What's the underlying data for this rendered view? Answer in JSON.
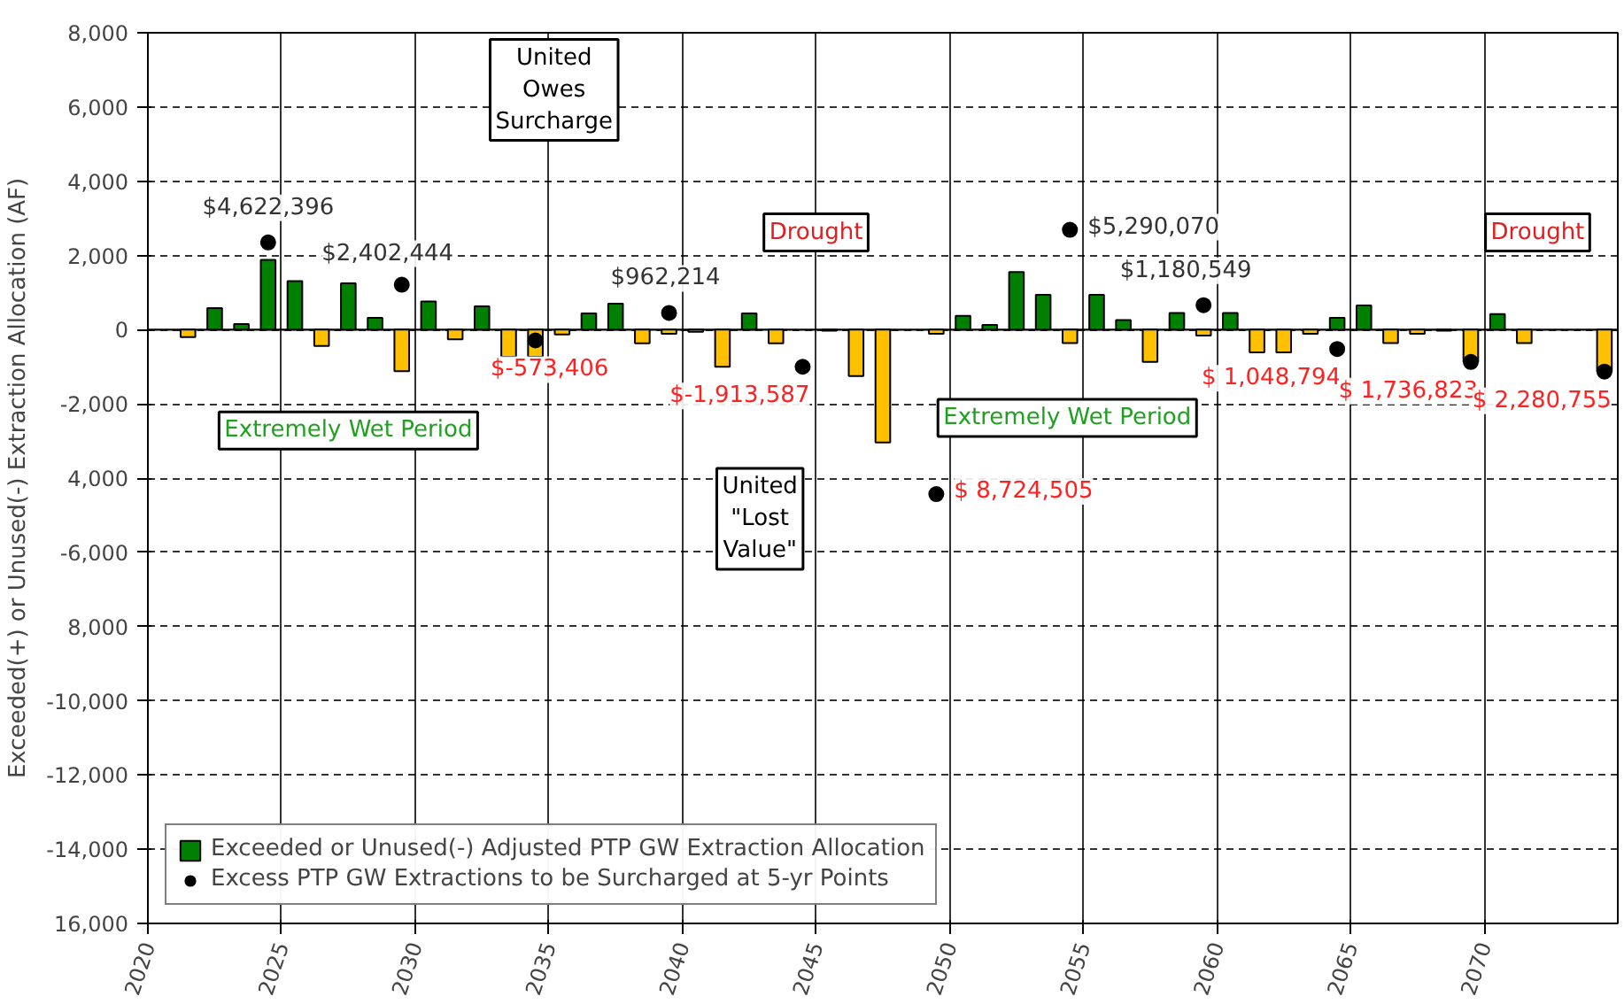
{
  "chart_data": {
    "type": "bar",
    "ylabel": "Exceeded(+) or Unused(-) Extraction Allocation (AF)",
    "x": [
      2021.5,
      2022.5,
      2023.5,
      2024.5,
      2025.5,
      2026.5,
      2027.5,
      2028.5,
      2029.5,
      2030.5,
      2031.5,
      2032.5,
      2033.5,
      2034.5,
      2035.5,
      2036.5,
      2037.5,
      2038.5,
      2039.5,
      2040.5,
      2041.5,
      2042.5,
      2043.5,
      2044.5,
      2045.5,
      2046.5,
      2047.5,
      2048.5,
      2049.5,
      2050.5,
      2051.5,
      2052.5,
      2053.5,
      2054.5,
      2055.5,
      2056.5,
      2057.5,
      2058.5,
      2059.5,
      2060.5,
      2061.5,
      2062.5,
      2063.5,
      2064.5,
      2065.5,
      2066.5,
      2067.5,
      2068.5,
      2069.5,
      2070.5,
      2071.5,
      2072.5,
      2073.5,
      2074.5
    ],
    "series": [
      {
        "name": "Exceeded or Unused(-) Adjusted PTP GW Extraction Allocation",
        "color": "#008000",
        "values": [
          -200,
          580,
          150,
          1880,
          1310,
          -440,
          1250,
          320,
          -1120,
          760,
          -260,
          630,
          -730,
          -730,
          -130,
          440,
          700,
          -370,
          -110,
          -60,
          -1000,
          440,
          -370,
          null,
          -30,
          -1250,
          -3040,
          null,
          -110,
          370,
          130,
          1550,
          940,
          -360,
          940,
          260,
          -870,
          450,
          -160,
          450,
          -610,
          -610,
          -110,
          320,
          650,
          -360,
          -110,
          -30,
          -870,
          420,
          -360,
          null,
          null,
          -1130
        ],
        "colors": [
          "#ffc000",
          "#008000",
          "#008000",
          "#008000",
          "#008000",
          "#ffc000",
          "#008000",
          "#008000",
          "#ffc000",
          "#008000",
          "#ffc000",
          "#008000",
          "#ffc000",
          "#ffc000",
          "#ffc000",
          "#008000",
          "#008000",
          "#ffc000",
          "#ffc000",
          "#ffc000",
          "#ffc000",
          "#008000",
          "#ffc000",
          "#ffc000",
          "#ffc000",
          "#ffc000",
          "#ffc000",
          "#ffc000",
          "#ffc000",
          "#008000",
          "#008000",
          "#008000",
          "#008000",
          "#ffc000",
          "#008000",
          "#008000",
          "#ffc000",
          "#008000",
          "#ffc000",
          "#008000",
          "#ffc000",
          "#ffc000",
          "#ffc000",
          "#008000",
          "#008000",
          "#ffc000",
          "#ffc000",
          "#ffc000",
          "#ffc000",
          "#008000",
          "#ffc000",
          "#ffc000",
          "#ffc000",
          "#ffc000"
        ]
      },
      {
        "name": "Excess PTP GW Extractions to be Surcharged at 5-yr Points",
        "type": "scatter",
        "color": "#000000",
        "marker": "circle",
        "x": [
          2024.5,
          2029.5,
          2034.5,
          2039.5,
          2044.5,
          2049.5,
          2054.5,
          2059.5,
          2064.5,
          2069.5,
          2074.5
        ],
        "values": [
          2350,
          1210,
          -290,
          450,
          -1000,
          -4430,
          2690,
          660,
          -520,
          -870,
          -1130
        ]
      }
    ],
    "xlim": [
      2020,
      2075
    ],
    "xticks": [
      2020,
      2025,
      2030,
      2035,
      2040,
      2045,
      2050,
      2055,
      2060,
      2065,
      2070
    ],
    "ylim": [
      -16000,
      8000
    ],
    "yticks": [
      {
        "value": 8000,
        "label": "8,000"
      },
      {
        "value": 6000,
        "label": "6,000"
      },
      {
        "value": 4000,
        "label": "4,000"
      },
      {
        "value": 2000,
        "label": "2,000"
      },
      0,
      {
        "value": -2000,
        "label": "-2,000"
      },
      {
        "value": -4000,
        "label": "4,000"
      },
      {
        "value": -6000,
        "label": "-6,000"
      },
      {
        "value": -8000,
        "label": "8,000"
      },
      {
        "value": -10000,
        "label": "-10,000"
      },
      {
        "value": -12000,
        "label": "-12,000"
      },
      {
        "value": -14000,
        "label": "-14,000"
      },
      {
        "value": -16000,
        "label": "16,000"
      }
    ],
    "annotations": [
      "United\nOwes\nSurcharge",
      "Drought",
      "Drought",
      "Extremely Wet Period",
      "Extremely Wet Period",
      "United\n\"Lost\nValue\"",
      {
        "text": "$4,622,396",
        "x": 2024.5,
        "y": 2350
      },
      {
        "text": "$2,402,444",
        "x": 2029.5,
        "y": 1210
      },
      {
        "text": "$-573,406",
        "x": 2034.5,
        "y": -290
      },
      {
        "text": "$962,214",
        "x": 2039.5,
        "y": 450
      },
      {
        "text": "$-1,913,587",
        "x": 2044.5,
        "y": -1000
      },
      {
        "text": "$ 8,724,505",
        "x": 2049.5,
        "y": -4430
      },
      {
        "text": "$5,290,070",
        "x": 2054.5,
        "y": 2690
      },
      {
        "text": "$1,180,549",
        "x": 2059.5,
        "y": 660
      },
      {
        "text": "$ 1,048,794",
        "x": 2064.5,
        "y": -520
      },
      {
        "text": "$ 1,736,823",
        "x": 2069.5,
        "y": -870
      },
      {
        "text": "$ 2,280,755",
        "x": 2074.5,
        "y": -1130
      }
    ],
    "grid": true,
    "legend": "bottom left"
  }
}
